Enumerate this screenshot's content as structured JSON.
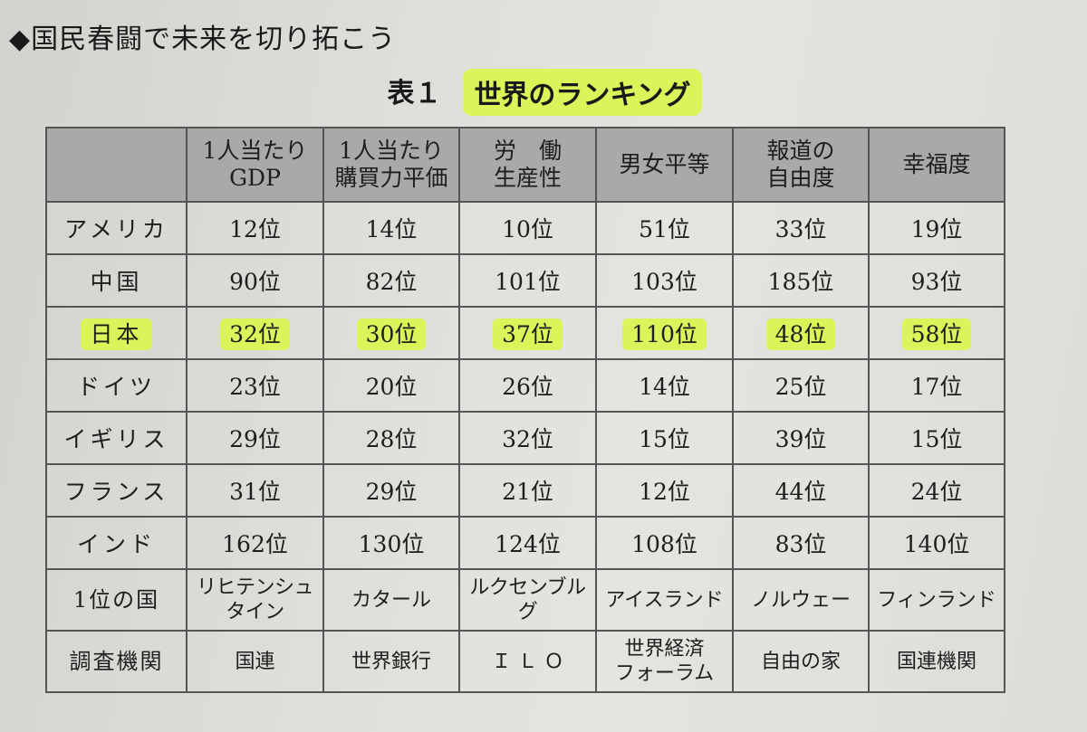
{
  "heading": "◆国民春闘で未来を切り拓こう",
  "caption": {
    "number": "表１",
    "title": "世界のランキング"
  },
  "columns": [
    "",
    "1人当たり GDP",
    "1人当たり 購買力平価",
    "労 働 生産性",
    "男女平等",
    "報道の 自由度",
    "幸福度"
  ],
  "header": [
    {
      "l1": "",
      "l2": ""
    },
    {
      "l1": "1人当たり",
      "l2": "GDP"
    },
    {
      "l1": "1人当たり",
      "l2": "購買力平価"
    },
    {
      "l1": "労　働",
      "l2": "生産性"
    },
    {
      "l1": "男女平等",
      "l2": ""
    },
    {
      "l1": "報道の",
      "l2": "自由度"
    },
    {
      "l1": "幸福度",
      "l2": ""
    }
  ],
  "rows": [
    {
      "country": "アメリカ",
      "values": [
        "12位",
        "14位",
        "10位",
        "51位",
        "33位",
        "19位"
      ]
    },
    {
      "country": "中国",
      "values": [
        "90位",
        "82位",
        "101位",
        "103位",
        "185位",
        "93位"
      ]
    },
    {
      "country": "日本",
      "values": [
        "32位",
        "30位",
        "37位",
        "110位",
        "48位",
        "58位"
      ],
      "highlight": true
    },
    {
      "country": "ドイツ",
      "values": [
        "23位",
        "20位",
        "26位",
        "14位",
        "25位",
        "17位"
      ]
    },
    {
      "country": "イギリス",
      "values": [
        "29位",
        "28位",
        "32位",
        "15位",
        "39位",
        "15位"
      ]
    },
    {
      "country": "フランス",
      "values": [
        "31位",
        "29位",
        "21位",
        "12位",
        "44位",
        "24位"
      ]
    },
    {
      "country": "インド",
      "values": [
        "162位",
        "130位",
        "124位",
        "108位",
        "83位",
        "140位"
      ]
    }
  ],
  "top_country": {
    "label": "1位の国",
    "values": [
      "リヒテンシュタイン",
      "カタール",
      "ルクセンブルグ",
      "アイスランド",
      "ノルウェー",
      "フィンランド"
    ]
  },
  "source": {
    "label": "調査機関",
    "values": [
      {
        "l1": "国連",
        "l2": ""
      },
      {
        "l1": "世界銀行",
        "l2": ""
      },
      {
        "l1": "Ｉ Ｌ Ｏ",
        "l2": ""
      },
      {
        "l1": "世界経済",
        "l2": "フォーラム"
      },
      {
        "l1": "自由の家",
        "l2": ""
      },
      {
        "l1": "国連機関",
        "l2": ""
      }
    ]
  },
  "colors": {
    "highlight": "#d9f55a",
    "header_bg": "#a9a9a7",
    "page_bg": "#dededa"
  }
}
